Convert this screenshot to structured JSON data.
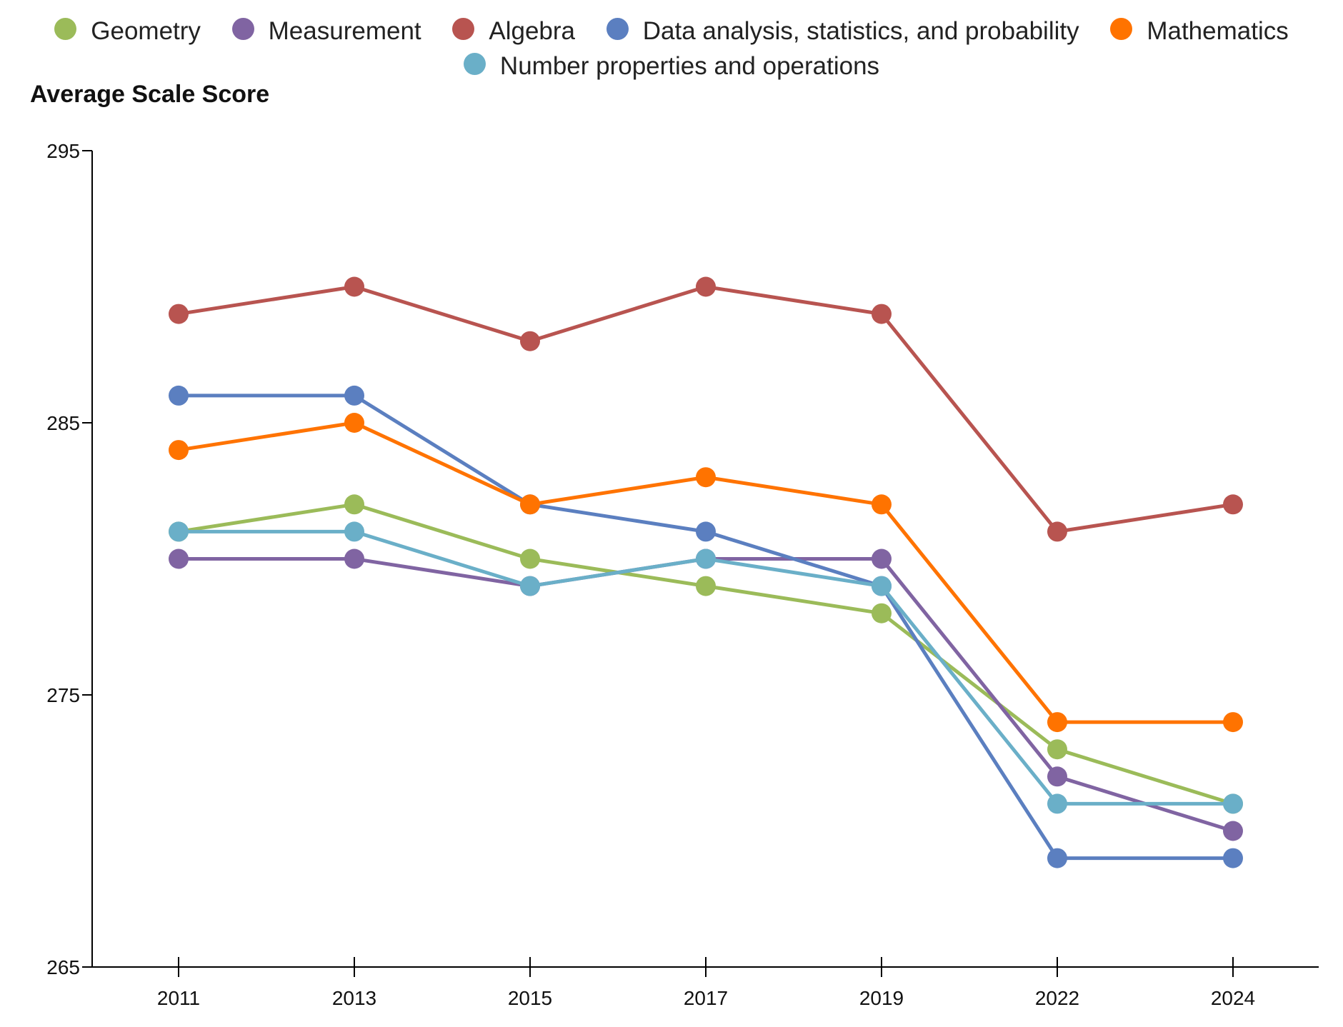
{
  "chart_data": {
    "type": "line",
    "ylabel": "Average Scale Score",
    "xlabel": "",
    "categories": [
      "2011",
      "2013",
      "2015",
      "2017",
      "2019",
      "2022",
      "2024"
    ],
    "ylim": [
      265,
      295
    ],
    "yticks": [
      265,
      275,
      285,
      295
    ],
    "legend_position": "top",
    "grid": false,
    "series": [
      {
        "name": "Geometry",
        "color": "#9bbb59",
        "values": [
          281,
          282,
          280,
          279,
          278,
          273,
          271
        ]
      },
      {
        "name": "Measurement",
        "color": "#8064a2",
        "values": [
          280,
          280,
          279,
          280,
          280,
          272,
          270
        ]
      },
      {
        "name": "Algebra",
        "color": "#b85450",
        "values": [
          289,
          290,
          288,
          290,
          289,
          281,
          282
        ]
      },
      {
        "name": "Data analysis, statistics, and probability",
        "color": "#5b7fc0",
        "values": [
          286,
          286,
          282,
          281,
          279,
          269,
          269
        ]
      },
      {
        "name": "Mathematics",
        "color": "#ff7300",
        "values": [
          284,
          285,
          282,
          283,
          282,
          274,
          274
        ]
      },
      {
        "name": "Number properties and operations",
        "color": "#6aafc8",
        "values": [
          281,
          281,
          279,
          280,
          279,
          271,
          271
        ]
      }
    ]
  }
}
